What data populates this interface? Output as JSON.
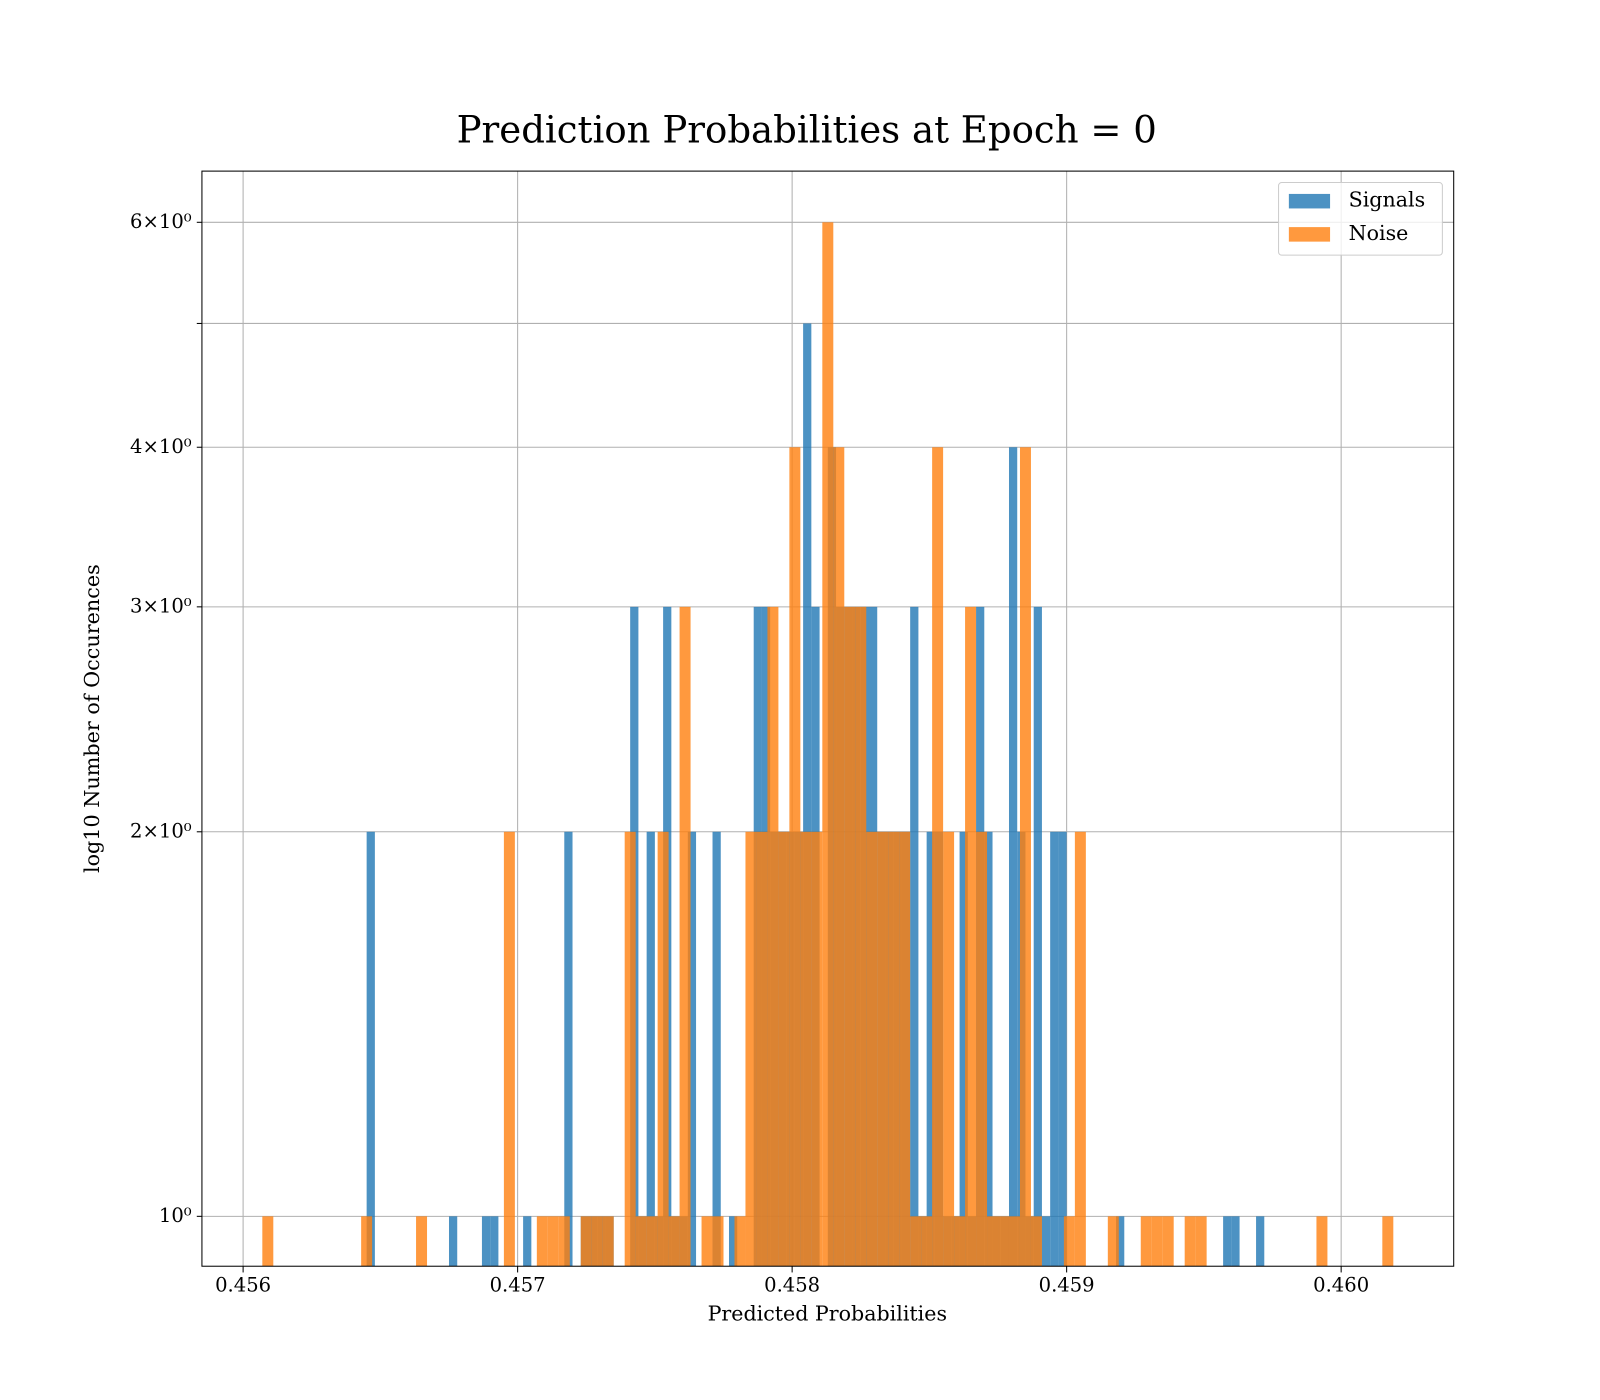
{
  "chart_data": {
    "type": "histogram",
    "title": "Prediction Probabilities at Epoch = 0",
    "x_label": "Predicted Probabilities",
    "y_label": "log10 Number of Occurences",
    "log_y": true,
    "grid": true,
    "legend": "upper right",
    "xlim": [
      0.45585,
      0.46041
    ],
    "ylim": [
      0.914,
      6.58
    ],
    "xticks": [
      0.456,
      0.457,
      0.458,
      0.459,
      {
        "value": 0.46,
        "label": "0.460"
      }
    ],
    "yticks": [
      {
        "value": 1,
        "label": "10⁰"
      },
      {
        "value": 2,
        "label": "2×10⁰"
      },
      {
        "value": 3,
        "label": "3×10⁰"
      },
      {
        "value": 4,
        "label": "4×10⁰"
      },
      {
        "value": 5,
        "label": null
      },
      {
        "value": 6,
        "label": "6×10⁰"
      }
    ],
    "series": [
      {
        "name": "Signals",
        "color": "#1f77b4",
        "opacity": 0.8,
        "bins": [
          0.45645,
          0.45648,
          0.45651,
          0.45654,
          0.45657,
          0.4566,
          0.45663,
          0.45666,
          0.45669,
          0.45672,
          0.45675,
          0.45678,
          0.45681,
          0.45684,
          0.45687,
          0.4569,
          0.45693,
          0.45696,
          0.45699,
          0.45702,
          0.45705,
          0.45708,
          0.45711,
          0.45714,
          0.45717,
          0.4572,
          0.45723,
          0.45726,
          0.45729,
          0.45732,
          0.45735,
          0.45738,
          0.45741,
          0.45744,
          0.45747,
          0.4575,
          0.45753,
          0.45756,
          0.45759,
          0.45762,
          0.45765,
          0.45768,
          0.45771,
          0.45774,
          0.45777,
          0.4578,
          0.45783,
          0.45786,
          0.45789,
          0.45792,
          0.45795,
          0.45798,
          0.45801,
          0.45804,
          0.45807,
          0.4581,
          0.45813,
          0.45816,
          0.45819,
          0.45822,
          0.45825,
          0.45828,
          0.45831,
          0.45834,
          0.45837,
          0.4584,
          0.45843,
          0.45846,
          0.45849,
          0.45852,
          0.45855,
          0.45858,
          0.45861,
          0.45864,
          0.45867,
          0.4587,
          0.45873,
          0.45876,
          0.45879,
          0.45882,
          0.45885,
          0.45888,
          0.45891,
          0.45894,
          0.45897,
          0.459,
          0.45903,
          0.45906,
          0.45909,
          0.45912,
          0.45915,
          0.45918,
          0.45921,
          0.45924,
          0.45927,
          0.4593,
          0.45933,
          0.45936,
          0.45939,
          0.45942,
          0.45945,
          0.45948,
          0.45951,
          0.45954,
          0.45957,
          0.4596,
          0.45963,
          0.45966,
          0.45969,
          0.45972,
          0.45975
        ],
        "values": [
          2,
          0,
          0,
          0,
          0,
          0,
          0,
          0,
          0,
          0,
          1,
          0,
          0,
          0,
          1,
          1,
          0,
          0,
          0,
          1,
          0,
          0,
          0,
          0,
          2,
          0,
          1,
          1,
          1,
          1,
          0,
          0,
          3,
          1,
          2,
          1,
          3,
          1,
          1,
          2,
          0,
          0,
          2,
          0,
          1,
          0,
          0,
          3,
          3,
          2,
          2,
          2,
          2,
          5,
          3,
          0,
          4,
          3,
          3,
          3,
          3,
          3,
          2,
          2,
          2,
          2,
          3,
          1,
          2,
          2,
          1,
          1,
          2,
          1,
          3,
          2,
          1,
          1,
          4,
          2,
          1,
          3,
          1,
          2,
          2,
          0,
          0,
          0,
          0,
          0,
          0,
          1,
          0,
          0,
          0,
          0,
          0,
          0,
          0,
          0,
          0,
          0,
          0,
          0,
          1,
          1,
          0,
          0,
          1,
          0
        ]
      },
      {
        "name": "Noise",
        "color": "#ff7f0e",
        "opacity": 0.8,
        "bins": [
          0.45607,
          0.45611,
          0.45615,
          0.45619,
          0.45623,
          0.45627,
          0.45631,
          0.45635,
          0.45639,
          0.45643,
          0.45647,
          0.45651,
          0.45655,
          0.45659,
          0.45663,
          0.45667,
          0.45671,
          0.45675,
          0.45679,
          0.45683,
          0.45687,
          0.45691,
          0.45695,
          0.45699,
          0.45703,
          0.45707,
          0.45711,
          0.45715,
          0.45719,
          0.45723,
          0.45727,
          0.45731,
          0.45735,
          0.45739,
          0.45743,
          0.45747,
          0.45751,
          0.45755,
          0.45759,
          0.45763,
          0.45767,
          0.45771,
          0.45775,
          0.45779,
          0.45783,
          0.45787,
          0.45791,
          0.45795,
          0.45799,
          0.45803,
          0.45807,
          0.45811,
          0.45815,
          0.45819,
          0.45823,
          0.45827,
          0.45831,
          0.45835,
          0.45839,
          0.45843,
          0.45847,
          0.45851,
          0.45855,
          0.45859,
          0.45863,
          0.45867,
          0.45871,
          0.45875,
          0.45879,
          0.45883,
          0.45887,
          0.45891,
          0.45895,
          0.45899,
          0.45903,
          0.45907,
          0.45911,
          0.45915,
          0.45919,
          0.45923,
          0.45927,
          0.45931,
          0.45935,
          0.45939,
          0.45943,
          0.45947,
          0.45951,
          0.45955,
          0.45959,
          0.45963,
          0.45967,
          0.45971,
          0.45975,
          0.45979,
          0.45983,
          0.45987,
          0.45991,
          0.45995,
          0.45999,
          0.46003,
          0.46007,
          0.46011,
          0.46015,
          0.46019,
          0.46023
        ],
        "values": [
          1,
          0,
          0,
          0,
          0,
          0,
          0,
          0,
          0,
          1,
          0,
          0,
          0,
          0,
          1,
          0,
          0,
          0,
          0,
          0,
          0,
          0,
          2,
          0,
          0,
          1,
          1,
          1,
          0,
          1,
          1,
          1,
          0,
          2,
          1,
          1,
          2,
          1,
          3,
          0,
          1,
          1,
          0,
          1,
          2,
          2,
          3,
          2,
          4,
          2,
          2,
          6,
          4,
          3,
          3,
          2,
          2,
          2,
          2,
          1,
          1,
          4,
          2,
          1,
          3,
          2,
          1,
          1,
          1,
          4,
          1,
          0,
          0,
          1,
          2,
          0,
          0,
          1,
          0,
          0,
          1,
          1,
          1,
          0,
          1,
          1,
          0,
          0,
          0,
          0,
          0,
          0,
          0,
          0,
          0,
          0,
          1,
          0,
          0,
          0,
          0,
          0,
          1,
          0
        ]
      }
    ]
  }
}
